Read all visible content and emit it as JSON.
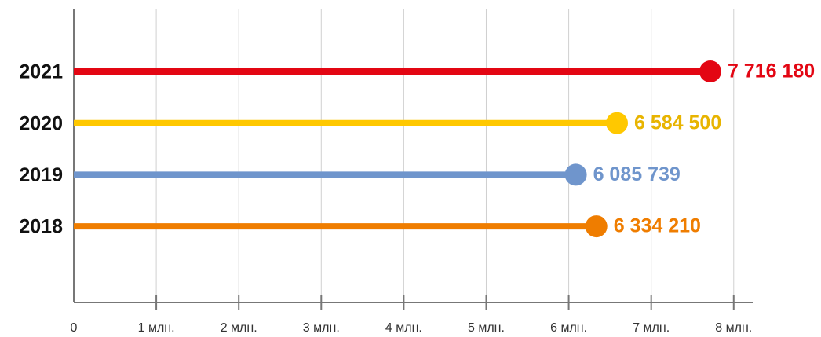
{
  "chart_data": {
    "type": "lollipop",
    "orientation": "horizontal",
    "categories": [
      "2021",
      "2020",
      "2019",
      "2018"
    ],
    "values": [
      7716180,
      6584500,
      6085739,
      6334210
    ],
    "value_labels": [
      "7 716 180",
      "6 584 500",
      "6 085 739",
      "6 334 210"
    ],
    "colors": [
      "#e30613",
      "#ffc800",
      "#6f95cc",
      "#ef7d00"
    ],
    "label_colors": [
      "#e30613",
      "#e8b400",
      "#6f95cc",
      "#ef7d00"
    ],
    "xlim": [
      0,
      8240000
    ],
    "xticks": [
      0,
      {
        "value": 1000000,
        "label": "1 млн."
      },
      {
        "value": 2000000,
        "label": "2 млн."
      },
      {
        "value": 3000000,
        "label": "3 млн."
      },
      {
        "value": 4000000,
        "label": "4 млн."
      },
      {
        "value": 5000000,
        "label": "5 млн."
      },
      {
        "value": 6000000,
        "label": "6 млн."
      },
      {
        "value": 7000000,
        "label": "7 млн."
      },
      {
        "value": 8000000,
        "label": "8 млн."
      }
    ],
    "grid": true
  }
}
